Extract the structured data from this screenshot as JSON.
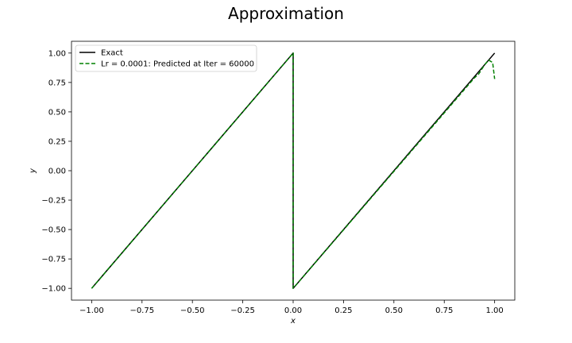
{
  "chart_data": {
    "type": "line",
    "title": "Approximation",
    "xlabel": "x",
    "ylabel": "y",
    "xlim": [
      -1.1,
      1.1
    ],
    "ylim": [
      -1.1,
      1.1
    ],
    "xticks": [
      -1.0,
      -0.75,
      -0.5,
      -0.25,
      0.0,
      0.25,
      0.5,
      0.75,
      1.0
    ],
    "xtick_labels": [
      "−1.00",
      "−0.75",
      "−0.50",
      "−0.25",
      "0.00",
      "0.25",
      "0.50",
      "0.75",
      "1.00"
    ],
    "yticks": [
      -1.0,
      -0.75,
      -0.5,
      -0.25,
      0.0,
      0.25,
      0.5,
      0.75,
      1.0
    ],
    "ytick_labels": [
      "−1.00",
      "−0.75",
      "−0.50",
      "−0.25",
      "0.00",
      "0.25",
      "0.50",
      "0.75",
      "1.00"
    ],
    "grid": false,
    "legend_position": "top-left",
    "series": [
      {
        "name": "Exact",
        "color": "#000000",
        "style": "solid",
        "x": [
          -1.0,
          0.0,
          0.0,
          1.0
        ],
        "y": [
          -1.0,
          1.0,
          -1.0,
          1.0
        ]
      },
      {
        "name": "Lr = 0.0001: Predicted at Iter = 60000",
        "color": "#008000",
        "style": "dashed",
        "x": [
          -1.0,
          0.0,
          0.0,
          0.9,
          0.92,
          0.95,
          0.97,
          0.99,
          1.0
        ],
        "y": [
          -1.0,
          1.0,
          -1.0,
          0.79,
          0.82,
          0.9,
          0.94,
          0.92,
          0.78
        ]
      }
    ]
  }
}
